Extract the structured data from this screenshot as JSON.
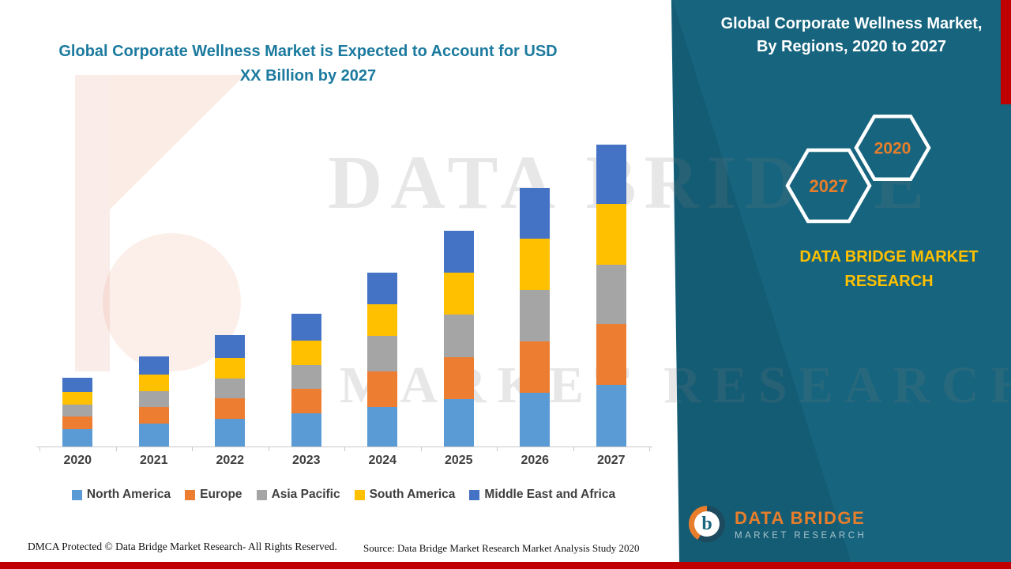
{
  "header": {
    "title_lines": [
      "Global Corporate Wellness Market is Expected to Account for USD",
      "XX Billion by 2027"
    ]
  },
  "chart_data": {
    "type": "bar",
    "stacked": true,
    "title": "Global Corporate Wellness Market is Expected to Account for USD XX Billion by 2027",
    "categories": [
      "2020",
      "2021",
      "2022",
      "2023",
      "2024",
      "2025",
      "2026",
      "2027"
    ],
    "series": [
      {
        "name": "North America",
        "color": "#5B9BD5",
        "values": [
          22,
          29,
          35,
          42,
          50,
          60,
          68,
          78
        ]
      },
      {
        "name": "Europe",
        "color": "#ED7D31",
        "values": [
          16,
          21,
          26,
          31,
          45,
          53,
          65,
          77
        ]
      },
      {
        "name": "Asia Pacific",
        "color": "#A5A5A5",
        "values": [
          15,
          20,
          25,
          30,
          45,
          54,
          65,
          75
        ]
      },
      {
        "name": "South America",
        "color": "#FFC000",
        "values": [
          16,
          21,
          26,
          31,
          40,
          53,
          65,
          77
        ]
      },
      {
        "name": "Middle East and Africa",
        "color": "#4472C4",
        "values": [
          18,
          23,
          29,
          34,
          40,
          53,
          64,
          75
        ]
      }
    ],
    "units": "relative heights (no numeric axis labels shown on chart)",
    "legend_position": "bottom",
    "grid": false
  },
  "panel": {
    "title_lines": [
      "Global Corporate Wellness Market,",
      "By Regions, 2020 to 2027"
    ],
    "hexagons": [
      "2027",
      "2020"
    ],
    "brand_lines": [
      "DATA BRIDGE MARKET",
      "RESEARCH"
    ]
  },
  "watermark": {
    "line1": "DATA BRIDGE",
    "line2": "MARKET RESEARCH"
  },
  "logo": {
    "icon_letter": "b",
    "name": "DATA BRIDGE",
    "subtitle": "MARKET RESEARCH"
  },
  "footer": {
    "dmca": "DMCA Protected © Data Bridge Market Research- All Rights Reserved.",
    "source": "Source: Data Bridge Market Research Market Analysis Study 2020"
  },
  "colors": {
    "panel_teal": "#16647E",
    "accent_red": "#C00000",
    "brand_yellow": "#FFC000",
    "hexagon_label_orange": "#E87E2B",
    "title_teal": "#1B7A9E",
    "logo_orange": "#E87E2B"
  }
}
